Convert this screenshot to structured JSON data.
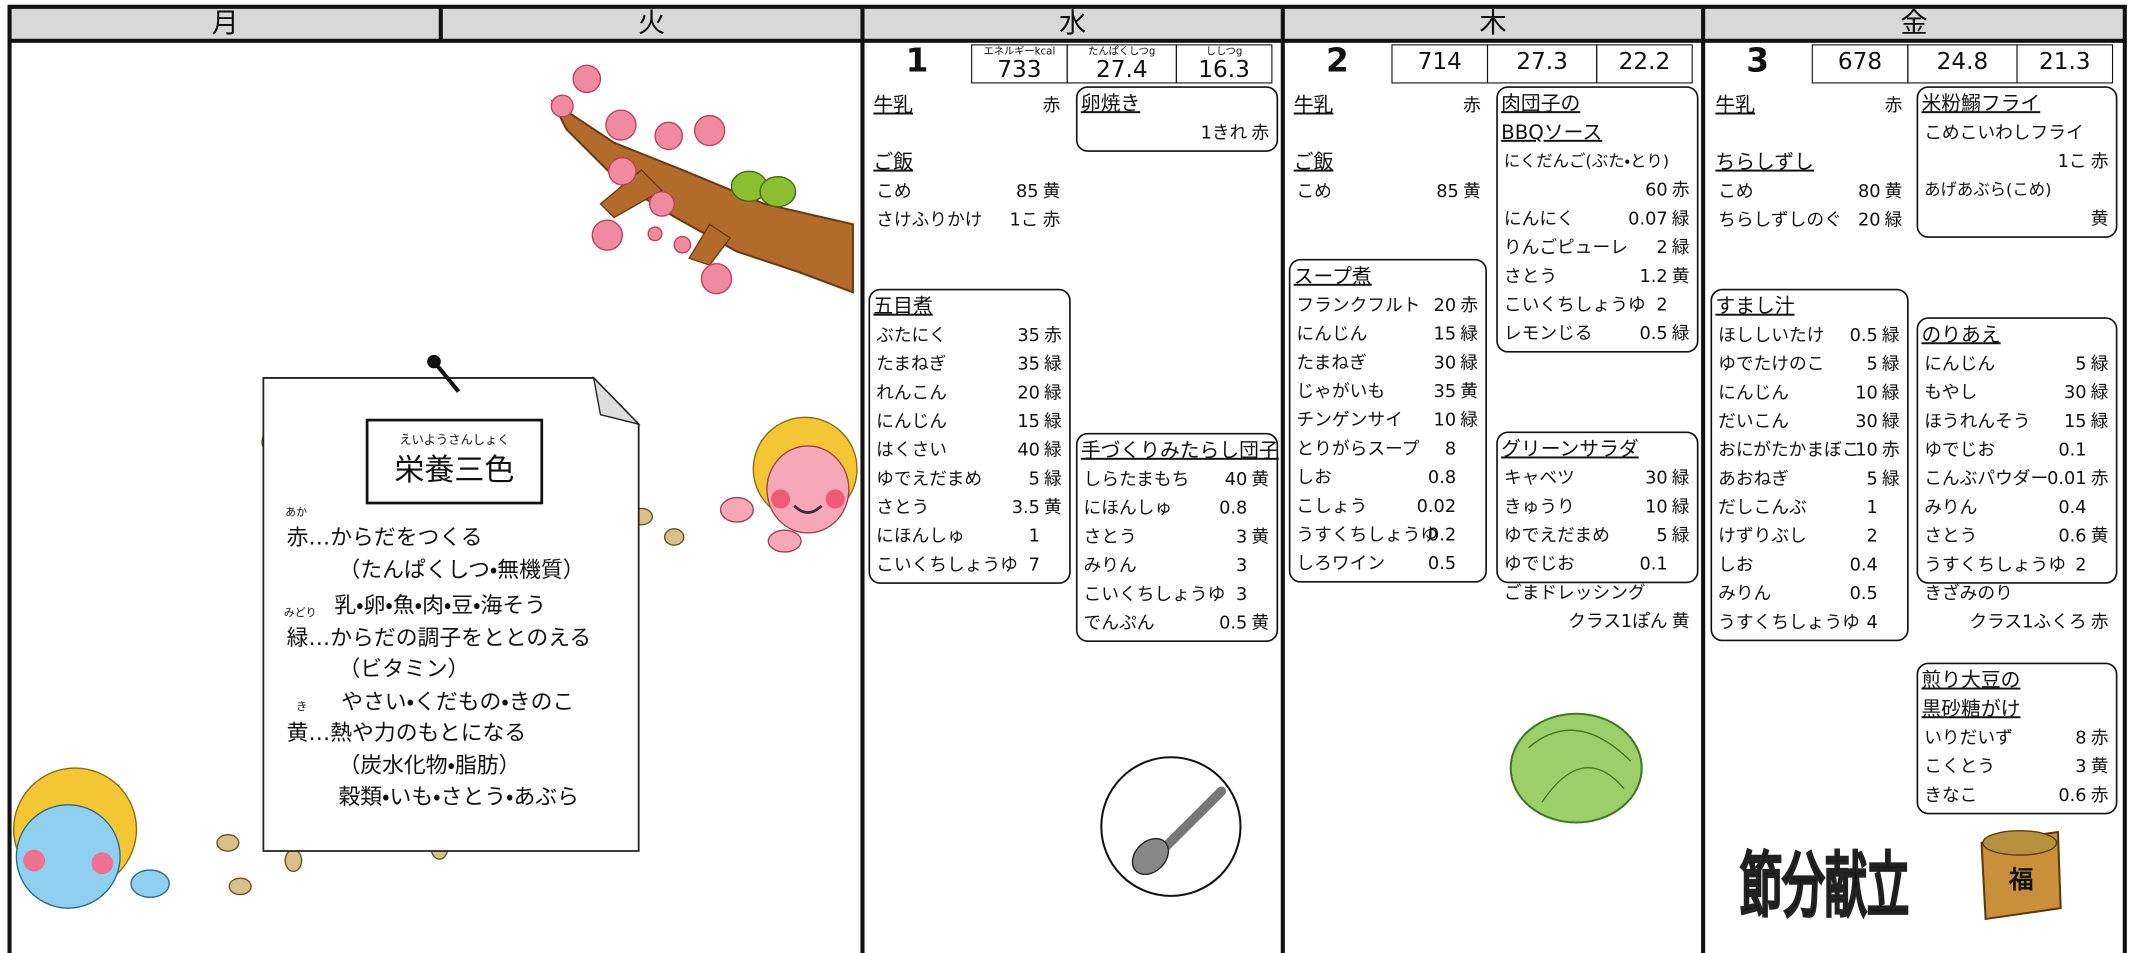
{
  "days": [
    "月",
    "火",
    "水",
    "木",
    "金"
  ],
  "nutrient_labels": [
    "エネルギーkcal",
    "たんぱくしつg",
    "ししつg"
  ],
  "menus": [
    {
      "date": 1,
      "energy": 733,
      "protein": 27.4,
      "fat": 16.3,
      "dishes": [
        {
          "name": [
            "牛乳"
          ],
          "group": "赤"
        },
        {
          "name": [
            "ご飯"
          ],
          "items": [
            {
              "name": "こめ",
              "amount": 85,
              "group": "黄"
            },
            {
              "name": "さけふりかけ",
              "amount": "1こ",
              "group": "赤"
            }
          ]
        },
        {
          "name": [
            "五目煮"
          ],
          "items": [
            {
              "name": "ぶたにく",
              "amount": 35,
              "group": "赤"
            },
            {
              "name": "たまねぎ",
              "amount": 35,
              "group": "緑"
            },
            {
              "name": "れんこん",
              "amount": 20,
              "group": "緑"
            },
            {
              "name": "にんじん",
              "amount": 15,
              "group": "緑"
            },
            {
              "name": "はくさい",
              "amount": 40,
              "group": "緑"
            },
            {
              "name": "ゆでえだまめ",
              "amount": 5,
              "group": "緑"
            },
            {
              "name": "さとう",
              "amount": 3.5,
              "group": "黄"
            },
            {
              "name": "にほんしゅ",
              "amount": 1
            },
            {
              "name": "こいくちしょうゆ",
              "amount": 7
            }
          ]
        },
        {
          "name": [
            "卵焼き"
          ],
          "items": [
            {
              "amount": "1きれ",
              "group": "赤"
            }
          ]
        },
        {
          "name": [
            "手づくりみたらし団子"
          ],
          "items": [
            {
              "name": "しらたまもち",
              "amount": 40,
              "group": "黄"
            },
            {
              "name": "にほんしゅ",
              "amount": 0.8
            },
            {
              "name": "さとう",
              "amount": 3,
              "group": "黄"
            },
            {
              "name": "みりん",
              "amount": 3
            },
            {
              "name": "こいくちしょうゆ",
              "amount": 3
            },
            {
              "name": "でんぷん",
              "amount": 0.5,
              "group": "黄"
            }
          ]
        }
      ]
    },
    {
      "date": 2,
      "energy": 714,
      "protein": 27.3,
      "fat": 22.2,
      "dishes": [
        {
          "name": [
            "牛乳"
          ],
          "group": "赤"
        },
        {
          "name": [
            "ご飯"
          ],
          "items": [
            {
              "name": "こめ",
              "amount": 85,
              "group": "黄"
            }
          ]
        },
        {
          "name": [
            "スープ煮"
          ],
          "items": [
            {
              "name": "フランクフルト",
              "amount": 20,
              "group": "赤"
            },
            {
              "name": "にんじん",
              "amount": 15,
              "group": "緑"
            },
            {
              "name": "たまねぎ",
              "amount": 30,
              "group": "緑"
            },
            {
              "name": "じゃがいも",
              "amount": 35,
              "group": "黄"
            },
            {
              "name": "チンゲンサイ",
              "amount": 10,
              "group": "緑"
            },
            {
              "name": "とりがらスープ",
              "amount": 8
            },
            {
              "name": "しお",
              "amount": 0.8
            },
            {
              "name": "こしょう",
              "amount": 0.02
            },
            {
              "name": "うすくちしょうゆ",
              "amount": 0.2
            },
            {
              "name": "しろワイン",
              "amount": 0.5
            }
          ]
        },
        {
          "name": [
            "肉団子の",
            "BBQソース"
          ],
          "items": [
            {
              "name": "にくだんご(ぶた・とり)",
              "amount": 60,
              "group": "赤"
            },
            {
              "name": "にんにく",
              "amount": 0.07,
              "group": "緑"
            },
            {
              "name": "りんごピューレ",
              "amount": 2,
              "group": "緑"
            },
            {
              "name": "さとう",
              "amount": 1.2,
              "group": "黄"
            },
            {
              "name": "こいくちしょうゆ",
              "amount": 2
            },
            {
              "name": "レモンじる",
              "amount": 0.5,
              "group": "緑"
            }
          ]
        },
        {
          "name": [
            "グリーンサラダ"
          ],
          "items": [
            {
              "name": "キャベツ",
              "amount": 30,
              "group": "緑"
            },
            {
              "name": "きゅうり",
              "amount": 10,
              "group": "緑"
            },
            {
              "name": "ゆでえだまめ",
              "amount": 5,
              "group": "緑"
            },
            {
              "name": "ゆでじお",
              "amount": 0.1
            }
          ],
          "extras": [
            {
              "name": "ごまドレッシング",
              "amount": "クラス1ぽん",
              "group": "黄"
            }
          ]
        }
      ]
    },
    {
      "date": 3,
      "energy": 678,
      "protein": 24.8,
      "fat": 21.3,
      "dishes": [
        {
          "name": [
            "牛乳"
          ],
          "group": "赤"
        },
        {
          "name": [
            "ちらしずし"
          ],
          "items": [
            {
              "name": "こめ",
              "amount": 80,
              "group": "黄"
            },
            {
              "name": "ちらしずしのぐ",
              "amount": 20,
              "group": "緑"
            }
          ]
        },
        {
          "name": [
            "すまし汁"
          ],
          "items": [
            {
              "name": "ほししいたけ",
              "amount": 0.5,
              "group": "緑"
            },
            {
              "name": "ゆでたけのこ",
              "amount": 5,
              "group": "緑"
            },
            {
              "name": "にんじん",
              "amount": 10,
              "group": "緑"
            },
            {
              "name": "だいこん",
              "amount": 30,
              "group": "緑"
            },
            {
              "name": "おにがたかまぼこ",
              "amount": 10,
              "group": "赤"
            },
            {
              "name": "あおねぎ",
              "amount": 5,
              "group": "緑"
            },
            {
              "name": "だしこんぶ",
              "amount": 1
            },
            {
              "name": "けずりぶし",
              "amount": 2
            },
            {
              "name": "しお",
              "amount": 0.4
            },
            {
              "name": "みりん",
              "amount": 0.5
            },
            {
              "name": "うすくちしょうゆ",
              "amount": 4
            }
          ]
        },
        {
          "name": [
            "米粉鰯フライ"
          ],
          "items": [
            {
              "name": "こめこいわしフライ",
              "amount": "1こ",
              "group": "赤"
            },
            {
              "name": "あげあぶら(こめ)",
              "group": "黄"
            }
          ]
        },
        {
          "name": [
            "のりあえ"
          ],
          "items": [
            {
              "name": "にんじん",
              "amount": 5,
              "group": "緑"
            },
            {
              "name": "もやし",
              "amount": 30,
              "group": "緑"
            },
            {
              "name": "ほうれんそう",
              "amount": 15,
              "group": "緑"
            },
            {
              "name": "ゆでじお",
              "amount": 0.1
            },
            {
              "name": "こんぶパウダー",
              "amount": 0.01,
              "group": "赤"
            },
            {
              "name": "みりん",
              "amount": 0.4
            },
            {
              "name": "さとう",
              "amount": 0.6,
              "group": "黄"
            },
            {
              "name": "うすくちしょうゆ",
              "amount": 2
            }
          ],
          "extras": [
            {
              "name": "きざみのり",
              "amount": "クラス1ふくろ",
              "group": "赤"
            }
          ]
        },
        {
          "name": [
            "煎り大豆の",
            "黒砂糖がけ"
          ],
          "items": [
            {
              "name": "いりだいず",
              "amount": 8,
              "group": "赤"
            },
            {
              "name": "こくとう",
              "amount": 3,
              "group": "黄"
            },
            {
              "name": "きなこ",
              "amount": 0.6,
              "group": "赤"
            }
          ]
        }
      ]
    }
  ],
  "nutrition_panel": {
    "title_ruby": "えいようさんしょく",
    "title": "栄養三色",
    "rubies": [
      "あか",
      "みどり",
      "き"
    ],
    "lines": [
      "赤…からだをつくる",
      "（たんぱくしつ・無機質）",
      "乳・卵・魚・肉・豆・海そう",
      "緑…からだの調子をととのえる",
      "（ビタミン）",
      "やさい・くだもの・きのこ",
      "黄…熱や力のもとになる",
      "（炭水化物・脂肪）",
      "穀類・いも・さとう・あぶら"
    ]
  },
  "event_title": "節分献立",
  "masu_label": "福"
}
